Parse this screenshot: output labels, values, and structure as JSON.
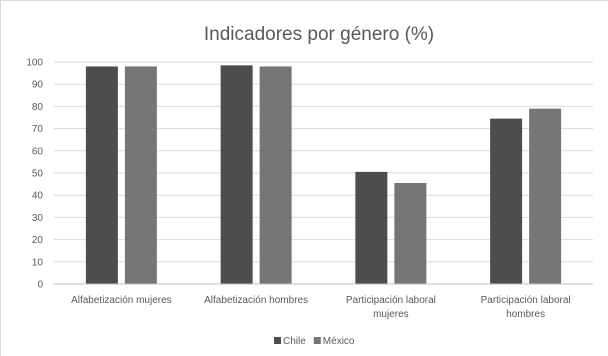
{
  "chart_data": {
    "type": "bar",
    "title": "Indicadores por género (%)",
    "xlabel": "",
    "ylabel": "",
    "ylim": [
      0,
      100
    ],
    "yticks": [
      0,
      10,
      20,
      30,
      40,
      50,
      60,
      70,
      80,
      90,
      100
    ],
    "grid": true,
    "legend_position": "bottom",
    "categories": [
      [
        "Alfabetización mujeres"
      ],
      [
        "Alfabetización hombres"
      ],
      [
        "Participación laboral",
        "mujeres"
      ],
      [
        "Participación laboral",
        "hombres"
      ]
    ],
    "series": [
      {
        "name": "Chile",
        "color": "#4d4d4d",
        "values": [
          98,
          98.5,
          50.5,
          74.5
        ]
      },
      {
        "name": "México",
        "color": "#767676",
        "values": [
          98,
          98,
          45.5,
          79
        ]
      }
    ]
  }
}
